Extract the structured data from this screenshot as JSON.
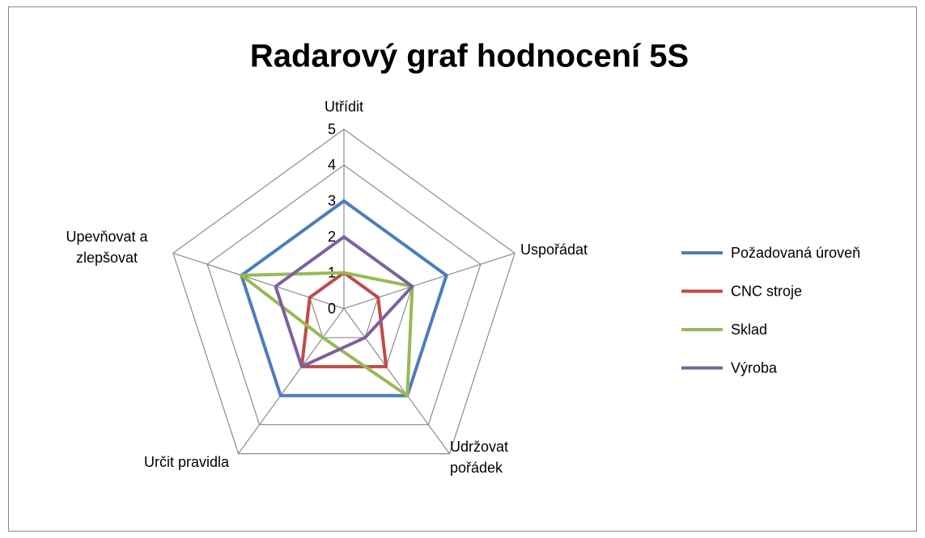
{
  "chart_data": {
    "type": "radar",
    "title": "Radarový graf hodnocení 5S",
    "categories": [
      "Utřídit",
      "Uspořádat",
      "Udržovat pořádek",
      "Určit pravidla",
      "Upevňovat a zlepšovat"
    ],
    "series": [
      {
        "name": "Požadovaná úroveň",
        "color": "#4a7ebb",
        "values": [
          3,
          3,
          3,
          3,
          3
        ]
      },
      {
        "name": "CNC stroje",
        "color": "#be4b48",
        "values": [
          1,
          1,
          2,
          2,
          1
        ]
      },
      {
        "name": "Sklad",
        "color": "#98b954",
        "values": [
          1,
          2,
          3,
          1,
          3
        ]
      },
      {
        "name": "Výroba",
        "color": "#7d60a0",
        "values": [
          2,
          2,
          1,
          2,
          2
        ]
      }
    ],
    "ylim": [
      0,
      5
    ],
    "yticks": [
      0,
      1,
      2,
      3,
      4,
      5
    ],
    "grid": true,
    "legend": "right"
  }
}
